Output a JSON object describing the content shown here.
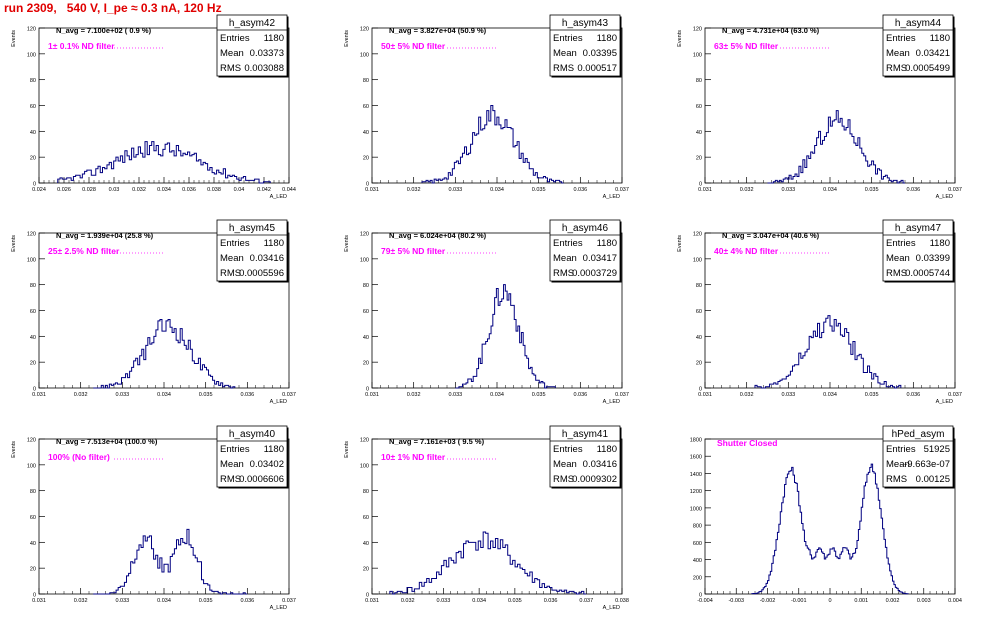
{
  "page": {
    "run_title": "run 2309,   540 V, I_pe ≈ 0.3 nA, 120 Hz"
  },
  "colors": {
    "histogram": "#000080",
    "annotation": "#ff00ff",
    "title": "#e00000",
    "axis": "#000000"
  },
  "chart_data": [
    {
      "type": "histogram",
      "name": "h_asym42",
      "navg": "N_avg = 7.100e+02 ( 0.9 %)",
      "filter": "1± 0.1% ND filter",
      "stats": {
        "Entries": "1180",
        "Mean": "0.03373",
        "RMS": "0.003088"
      },
      "xlabel": "A_LED",
      "ylabel": "Events",
      "xlim": [
        0.024,
        0.044
      ],
      "ylim": [
        0,
        120
      ],
      "xticks": [
        0.024,
        0.026,
        0.028,
        0.03,
        0.032,
        0.034,
        0.036,
        0.038,
        0.04,
        0.042,
        0.044
      ],
      "yticks": [
        0,
        20,
        40,
        60,
        80,
        100,
        120
      ],
      "gen": {
        "type": "gauss",
        "centers": [
          0.0335
        ],
        "sigmas": [
          0.0034
        ],
        "amps": [
          27
        ],
        "lo": 0.0255,
        "hi": 0.0425,
        "bins": 95,
        "seed": 42
      }
    },
    {
      "type": "histogram",
      "name": "h_asym43",
      "navg": "N_avg = 3.827e+04 (50.9 %)",
      "filter": "50± 5% ND filter",
      "stats": {
        "Entries": "1180",
        "Mean": "0.03395",
        "RMS": "0.000517"
      },
      "xlabel": "A_LED",
      "ylabel": "Events",
      "xlim": [
        0.031,
        0.037
      ],
      "ylim": [
        0,
        120
      ],
      "xticks": [
        0.031,
        0.032,
        0.033,
        0.034,
        0.035,
        0.036,
        0.037
      ],
      "yticks": [
        0,
        20,
        40,
        60,
        80,
        100,
        120
      ],
      "gen": {
        "type": "gauss",
        "centers": [
          0.0339
        ],
        "sigmas": [
          0.00052
        ],
        "amps": [
          53
        ],
        "lo": 0.0322,
        "hi": 0.0356,
        "bins": 70,
        "seed": 43
      }
    },
    {
      "type": "histogram",
      "name": "h_asym44",
      "navg": "N_avg = 4.731e+04 (63.0 %)",
      "filter": "63± 5% ND filter",
      "stats": {
        "Entries": "1180",
        "Mean": "0.03421",
        "RMS": "0.0005499"
      },
      "xlabel": "A_LED",
      "ylabel": "Events",
      "xlim": [
        0.031,
        0.037
      ],
      "ylim": [
        0,
        120
      ],
      "xticks": [
        0.031,
        0.032,
        0.033,
        0.034,
        0.035,
        0.036,
        0.037
      ],
      "yticks": [
        0,
        20,
        40,
        60,
        80,
        100,
        120
      ],
      "gen": {
        "type": "gauss",
        "centers": [
          0.0342
        ],
        "sigmas": [
          0.00052
        ],
        "amps": [
          48
        ],
        "lo": 0.0325,
        "hi": 0.0358,
        "bins": 70,
        "seed": 44
      }
    },
    {
      "type": "histogram",
      "name": "h_asym45",
      "navg": "N_avg = 1.939e+04 (25.8 %)",
      "filter": "25± 2.5% ND filter",
      "stats": {
        "Entries": "1180",
        "Mean": "0.03416",
        "RMS": "0.0005596"
      },
      "xlabel": "A_LED",
      "ylabel": "Events",
      "xlim": [
        0.031,
        0.037
      ],
      "ylim": [
        0,
        120
      ],
      "xticks": [
        0.031,
        0.032,
        0.033,
        0.034,
        0.035,
        0.036,
        0.037
      ],
      "yticks": [
        0,
        20,
        40,
        60,
        80,
        100,
        120
      ],
      "gen": {
        "type": "gauss",
        "centers": [
          0.0341
        ],
        "sigmas": [
          0.00055
        ],
        "amps": [
          48
        ],
        "lo": 0.0323,
        "hi": 0.0357,
        "bins": 70,
        "seed": 45
      }
    },
    {
      "type": "histogram",
      "name": "h_asym46",
      "navg": "N_avg = 6.024e+04 (80.2 %)",
      "filter": "79± 5% ND filter",
      "stats": {
        "Entries": "1180",
        "Mean": "0.03417",
        "RMS": "0.0003729"
      },
      "xlabel": "A_LED",
      "ylabel": "Events",
      "xlim": [
        0.031,
        0.037
      ],
      "ylim": [
        0,
        120
      ],
      "xticks": [
        0.031,
        0.032,
        0.033,
        0.034,
        0.035,
        0.036,
        0.037
      ],
      "yticks": [
        0,
        20,
        40,
        60,
        80,
        100,
        120
      ],
      "gen": {
        "type": "gauss",
        "centers": [
          0.03417
        ],
        "sigmas": [
          0.00036
        ],
        "amps": [
          75
        ],
        "lo": 0.033,
        "hi": 0.0354,
        "bins": 56,
        "seed": 46
      }
    },
    {
      "type": "histogram",
      "name": "h_asym47",
      "navg": "N_avg = 3.047e+04 (40.6 %)",
      "filter": "40± 4% ND filter",
      "stats": {
        "Entries": "1180",
        "Mean": "0.03399",
        "RMS": "0.0005744"
      },
      "xlabel": "A_LED",
      "ylabel": "Events",
      "xlim": [
        0.031,
        0.037
      ],
      "ylim": [
        0,
        120
      ],
      "xticks": [
        0.031,
        0.032,
        0.033,
        0.034,
        0.035,
        0.036,
        0.037
      ],
      "yticks": [
        0,
        20,
        40,
        60,
        80,
        100,
        120
      ],
      "gen": {
        "type": "gauss",
        "centers": [
          0.034
        ],
        "sigmas": [
          0.00056
        ],
        "amps": [
          50
        ],
        "lo": 0.0322,
        "hi": 0.0357,
        "bins": 70,
        "seed": 47
      }
    },
    {
      "type": "histogram",
      "name": "h_asym40",
      "navg": "N_avg = 7.513e+04 (100.0 %)",
      "filter": "100% (No filter)",
      "stats": {
        "Entries": "1180",
        "Mean": "0.03402",
        "RMS": "0.0006606"
      },
      "xlabel": "A_LED",
      "ylabel": "Events",
      "xlim": [
        0.031,
        0.037
      ],
      "ylim": [
        0,
        120
      ],
      "xticks": [
        0.031,
        0.032,
        0.033,
        0.034,
        0.035,
        0.036,
        0.037
      ],
      "yticks": [
        0,
        20,
        40,
        60,
        80,
        100,
        120
      ],
      "gen": {
        "type": "gauss",
        "centers": [
          0.03355,
          0.03452
        ],
        "sigmas": [
          0.00028,
          0.00028
        ],
        "amps": [
          45,
          44
        ],
        "lo": 0.0323,
        "hi": 0.036,
        "bins": 74,
        "seed": 40
      }
    },
    {
      "type": "histogram",
      "name": "h_asym41",
      "navg": "N_avg = 7.161e+03 ( 9.5 %)",
      "filter": "10± 1% ND filter",
      "stats": {
        "Entries": "1180",
        "Mean": "0.03416",
        "RMS": "0.0009302"
      },
      "xlabel": "A_LED",
      "ylabel": "Events",
      "xlim": [
        0.031,
        0.038
      ],
      "ylim": [
        0,
        120
      ],
      "xticks": [
        0.031,
        0.032,
        0.033,
        0.034,
        0.035,
        0.036,
        0.037,
        0.038
      ],
      "yticks": [
        0,
        20,
        40,
        60,
        80,
        100,
        120
      ],
      "gen": {
        "type": "gauss",
        "centers": [
          0.0341
        ],
        "sigmas": [
          0.0009
        ],
        "amps": [
          42
        ],
        "lo": 0.0315,
        "hi": 0.037,
        "bins": 80,
        "seed": 41
      }
    },
    {
      "type": "histogram",
      "name": "hPed_asym",
      "navg": "",
      "filter": "Shutter Closed",
      "stats": {
        "Entries": "51925",
        "Mean": "-9.663e-07",
        "RMS": "0.00125"
      },
      "xlabel": "",
      "ylabel": "",
      "xlim": [
        -0.004,
        0.004
      ],
      "ylim": [
        0,
        1800
      ],
      "xticks": [
        -0.004,
        -0.003,
        -0.002,
        -0.001,
        0,
        0.001,
        0.002,
        0.003,
        0.004
      ],
      "yticks": [
        0,
        200,
        400,
        600,
        800,
        1000,
        1200,
        1400,
        1600,
        1800
      ],
      "gen": {
        "type": "gauss",
        "centers": [
          -0.00125,
          0.00132
        ],
        "sigmas": [
          0.00035,
          0.00033
        ],
        "amps": [
          1440,
          1480
        ],
        "floor": 480,
        "floorlo": -0.001,
        "floorhi": 0.0011,
        "lo": -0.0025,
        "hi": 0.0025,
        "bins": 110,
        "seed": 48
      }
    }
  ]
}
